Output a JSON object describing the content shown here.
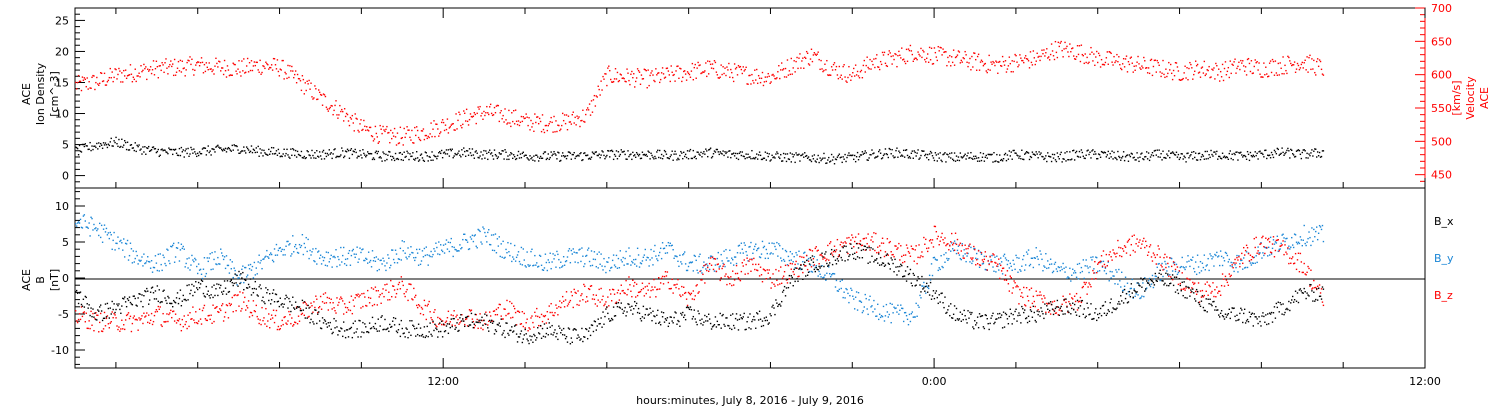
{
  "xlabel": "hours:minutes,  July  8, 2016 - July  9, 2016",
  "chart_data": [
    {
      "type": "scatter",
      "panel": "top",
      "ylabel_left": [
        "ACE",
        "Ion Density",
        "[cm^-3]"
      ],
      "ylabel_right": [
        "ACE",
        "Velocity",
        "[km/s]"
      ],
      "x_unit": "hours since July 8, 2016 00:00",
      "xlim": [
        3,
        36
      ],
      "ylim_left": [
        -2,
        27
      ],
      "ylim_right": [
        430,
        700
      ],
      "yticks_left": [
        0,
        5,
        10,
        15,
        20,
        25
      ],
      "yticks_right": [
        450,
        500,
        550,
        600,
        650,
        700
      ],
      "colors": {
        "density": "#000000",
        "velocity": "#ff0000"
      },
      "series": [
        {
          "axis": "left",
          "color": "#000000",
          "x": [
            3.0,
            3.5,
            4.0,
            4.5,
            5.0,
            5.5,
            6.0,
            6.5,
            7.0,
            7.5,
            8.0,
            8.5,
            9.0,
            9.5,
            10.0,
            10.5,
            11.0,
            11.5,
            12.0,
            12.5,
            13.0,
            13.5,
            14.0,
            14.5,
            15.0,
            15.5,
            16.0,
            16.5,
            17.0,
            17.5,
            18.0,
            18.5,
            19.0,
            19.5,
            20.0,
            20.5,
            21.0,
            21.5,
            22.0,
            22.5,
            23.0,
            23.5,
            24.0,
            24.5,
            25.0,
            25.5,
            26.0,
            26.5,
            27.0,
            27.5,
            28.0,
            28.5,
            29.0,
            29.5,
            30.0,
            30.5,
            31.0,
            31.5,
            32.0,
            32.5,
            33.0,
            33.5
          ],
          "values": [
            4,
            5,
            5.5,
            4.5,
            4,
            3.8,
            4,
            4.2,
            4.5,
            4,
            3.8,
            3.6,
            3.5,
            3.8,
            3.5,
            3.2,
            3.3,
            3.2,
            3.5,
            3.8,
            3.5,
            3.5,
            3.3,
            3.2,
            3.2,
            3.3,
            3.5,
            3.5,
            3.5,
            3.3,
            3.5,
            3.8,
            3.5,
            3.5,
            3.2,
            3.0,
            3.0,
            2.8,
            3.0,
            3.5,
            3.8,
            3.5,
            3.2,
            3.0,
            3.2,
            3.0,
            3.5,
            3.2,
            3.0,
            3.5,
            3.5,
            3.2,
            3.0,
            3.5,
            3.0,
            3.3,
            3.5,
            3.2,
            3.5,
            3.8,
            3.5,
            3.8
          ]
        },
        {
          "axis": "right",
          "color": "#ff0000",
          "x": [
            3.0,
            3.5,
            4.0,
            4.5,
            5.0,
            5.5,
            6.0,
            6.5,
            7.0,
            7.5,
            8.0,
            8.5,
            9.0,
            9.5,
            10.0,
            10.5,
            11.0,
            11.5,
            12.0,
            12.5,
            13.0,
            13.5,
            14.0,
            14.5,
            15.0,
            15.5,
            16.0,
            16.5,
            17.0,
            17.5,
            18.0,
            18.5,
            19.0,
            19.5,
            20.0,
            20.5,
            21.0,
            21.5,
            22.0,
            22.5,
            23.0,
            23.5,
            24.0,
            24.5,
            25.0,
            25.5,
            26.0,
            26.5,
            27.0,
            27.5,
            28.0,
            28.5,
            29.0,
            29.5,
            30.0,
            30.5,
            31.0,
            31.5,
            32.0,
            32.5,
            33.0,
            33.5
          ],
          "values": [
            585,
            590,
            600,
            605,
            610,
            612,
            615,
            612,
            610,
            615,
            612,
            590,
            565,
            545,
            520,
            510,
            508,
            515,
            525,
            535,
            545,
            540,
            530,
            528,
            530,
            540,
            600,
            597,
            595,
            600,
            605,
            610,
            605,
            600,
            597,
            615,
            630,
            610,
            600,
            620,
            625,
            635,
            630,
            625,
            620,
            615,
            620,
            625,
            640,
            635,
            625,
            620,
            615,
            610,
            605,
            610,
            605,
            615,
            610,
            615,
            620,
            610
          ]
        }
      ]
    },
    {
      "type": "scatter",
      "panel": "bottom",
      "ylabel_left": [
        "ACE",
        "B",
        "[nT]"
      ],
      "x_unit": "hours since July 8, 2016 00:00",
      "xlim": [
        3,
        36
      ],
      "ylim": [
        -12.5,
        12.5
      ],
      "yticks": [
        -10,
        -5,
        0,
        5,
        10
      ],
      "legend": [
        "B_x",
        "B_y",
        "B_z"
      ],
      "legend_placement": "right",
      "colors": {
        "Bx": "#000000",
        "By": "#1a86d6",
        "Bz": "#ff0000"
      },
      "series": [
        {
          "name": "B_x",
          "color": "#000000",
          "x": [
            3.0,
            3.5,
            4.0,
            4.5,
            5.0,
            5.5,
            6.0,
            6.5,
            7.0,
            7.5,
            8.0,
            8.5,
            9.0,
            9.5,
            10.0,
            10.5,
            11.0,
            11.5,
            12.0,
            12.5,
            13.0,
            13.5,
            14.0,
            14.5,
            15.0,
            15.5,
            16.0,
            16.5,
            17.0,
            17.5,
            18.0,
            18.5,
            19.0,
            19.5,
            20.0,
            20.5,
            21.0,
            21.5,
            22.0,
            22.5,
            23.0,
            23.5,
            24.0,
            24.5,
            25.0,
            25.5,
            26.0,
            26.5,
            27.0,
            27.5,
            28.0,
            28.5,
            29.0,
            29.5,
            30.0,
            30.5,
            31.0,
            31.5,
            32.0,
            32.5,
            33.0,
            33.5
          ],
          "values": [
            -2,
            -5,
            -4,
            -3,
            -2,
            -3,
            -1,
            -2,
            0,
            -2,
            -3,
            -4,
            -6,
            -7,
            -7,
            -6,
            -7,
            -7,
            -7,
            -6,
            -6,
            -7,
            -8,
            -7,
            -8,
            -8,
            -5,
            -4,
            -5,
            -6,
            -5,
            -6,
            -6,
            -6,
            -5,
            0,
            2,
            3,
            4,
            3,
            2,
            0,
            -2,
            -5,
            -6,
            -6,
            -5,
            -5,
            -4,
            -4,
            -5,
            -3,
            -1,
            0,
            -1,
            -3,
            -5,
            -5,
            -6,
            -4,
            -2,
            -2
          ]
        },
        {
          "name": "B_y",
          "color": "#1a86d6",
          "x": [
            3.0,
            3.5,
            4.0,
            4.5,
            5.0,
            5.5,
            6.0,
            6.5,
            7.0,
            7.5,
            8.0,
            8.5,
            9.0,
            9.5,
            10.0,
            10.5,
            11.0,
            11.5,
            12.0,
            12.5,
            13.0,
            13.5,
            14.0,
            14.5,
            15.0,
            15.5,
            16.0,
            16.5,
            17.0,
            17.5,
            18.0,
            18.5,
            19.0,
            19.5,
            20.0,
            20.5,
            21.0,
            21.5,
            22.0,
            22.5,
            23.0,
            23.5,
            24.0,
            24.5,
            25.0,
            25.5,
            26.0,
            26.5,
            27.0,
            27.5,
            28.0,
            28.5,
            29.0,
            29.5,
            30.0,
            30.5,
            31.0,
            31.5,
            32.0,
            32.5,
            33.0,
            33.5
          ],
          "values": [
            8,
            7,
            5,
            3,
            2,
            4,
            1,
            3,
            0,
            2,
            4,
            5,
            3,
            3,
            3,
            2,
            4,
            3,
            4,
            5,
            6,
            4,
            3,
            2,
            3,
            3,
            2,
            3,
            3,
            4,
            2,
            2,
            3,
            4,
            4,
            3,
            2,
            0,
            -3,
            -4,
            -5,
            -5,
            2,
            4,
            3,
            2,
            2,
            3,
            1,
            1,
            2,
            0,
            -2,
            1,
            2,
            2,
            3,
            2,
            4,
            5,
            6,
            6
          ]
        },
        {
          "name": "B_z",
          "color": "#ff0000",
          "x": [
            3.0,
            3.5,
            4.0,
            4.5,
            5.0,
            5.5,
            6.0,
            6.5,
            7.0,
            7.5,
            8.0,
            8.5,
            9.0,
            9.5,
            10.0,
            10.5,
            11.0,
            11.5,
            12.0,
            12.5,
            13.0,
            13.5,
            14.0,
            14.5,
            15.0,
            15.5,
            16.0,
            16.5,
            17.0,
            17.5,
            18.0,
            18.5,
            19.0,
            19.5,
            20.0,
            20.5,
            21.0,
            21.5,
            22.0,
            22.5,
            23.0,
            23.5,
            24.0,
            24.5,
            25.0,
            25.5,
            26.0,
            26.5,
            27.0,
            27.5,
            28.0,
            28.5,
            29.0,
            29.5,
            30.0,
            30.5,
            31.0,
            31.5,
            32.0,
            32.5,
            33.0,
            33.5
          ],
          "values": [
            -5,
            -6,
            -6,
            -6,
            -5,
            -6,
            -5,
            -5,
            -3,
            -5,
            -6,
            -5,
            -3,
            -4,
            -3,
            -2,
            -1,
            -4,
            -6,
            -5,
            -6,
            -4,
            -6,
            -5,
            -3,
            -2,
            -3,
            -1,
            -2,
            0,
            -3,
            2,
            0,
            2,
            0,
            1,
            3,
            4,
            5,
            5,
            4,
            3,
            6,
            5,
            3,
            2,
            -2,
            -3,
            -4,
            -3,
            2,
            4,
            5,
            3,
            0,
            -2,
            -1,
            3,
            5,
            4,
            2,
            -3
          ]
        }
      ]
    }
  ]
}
